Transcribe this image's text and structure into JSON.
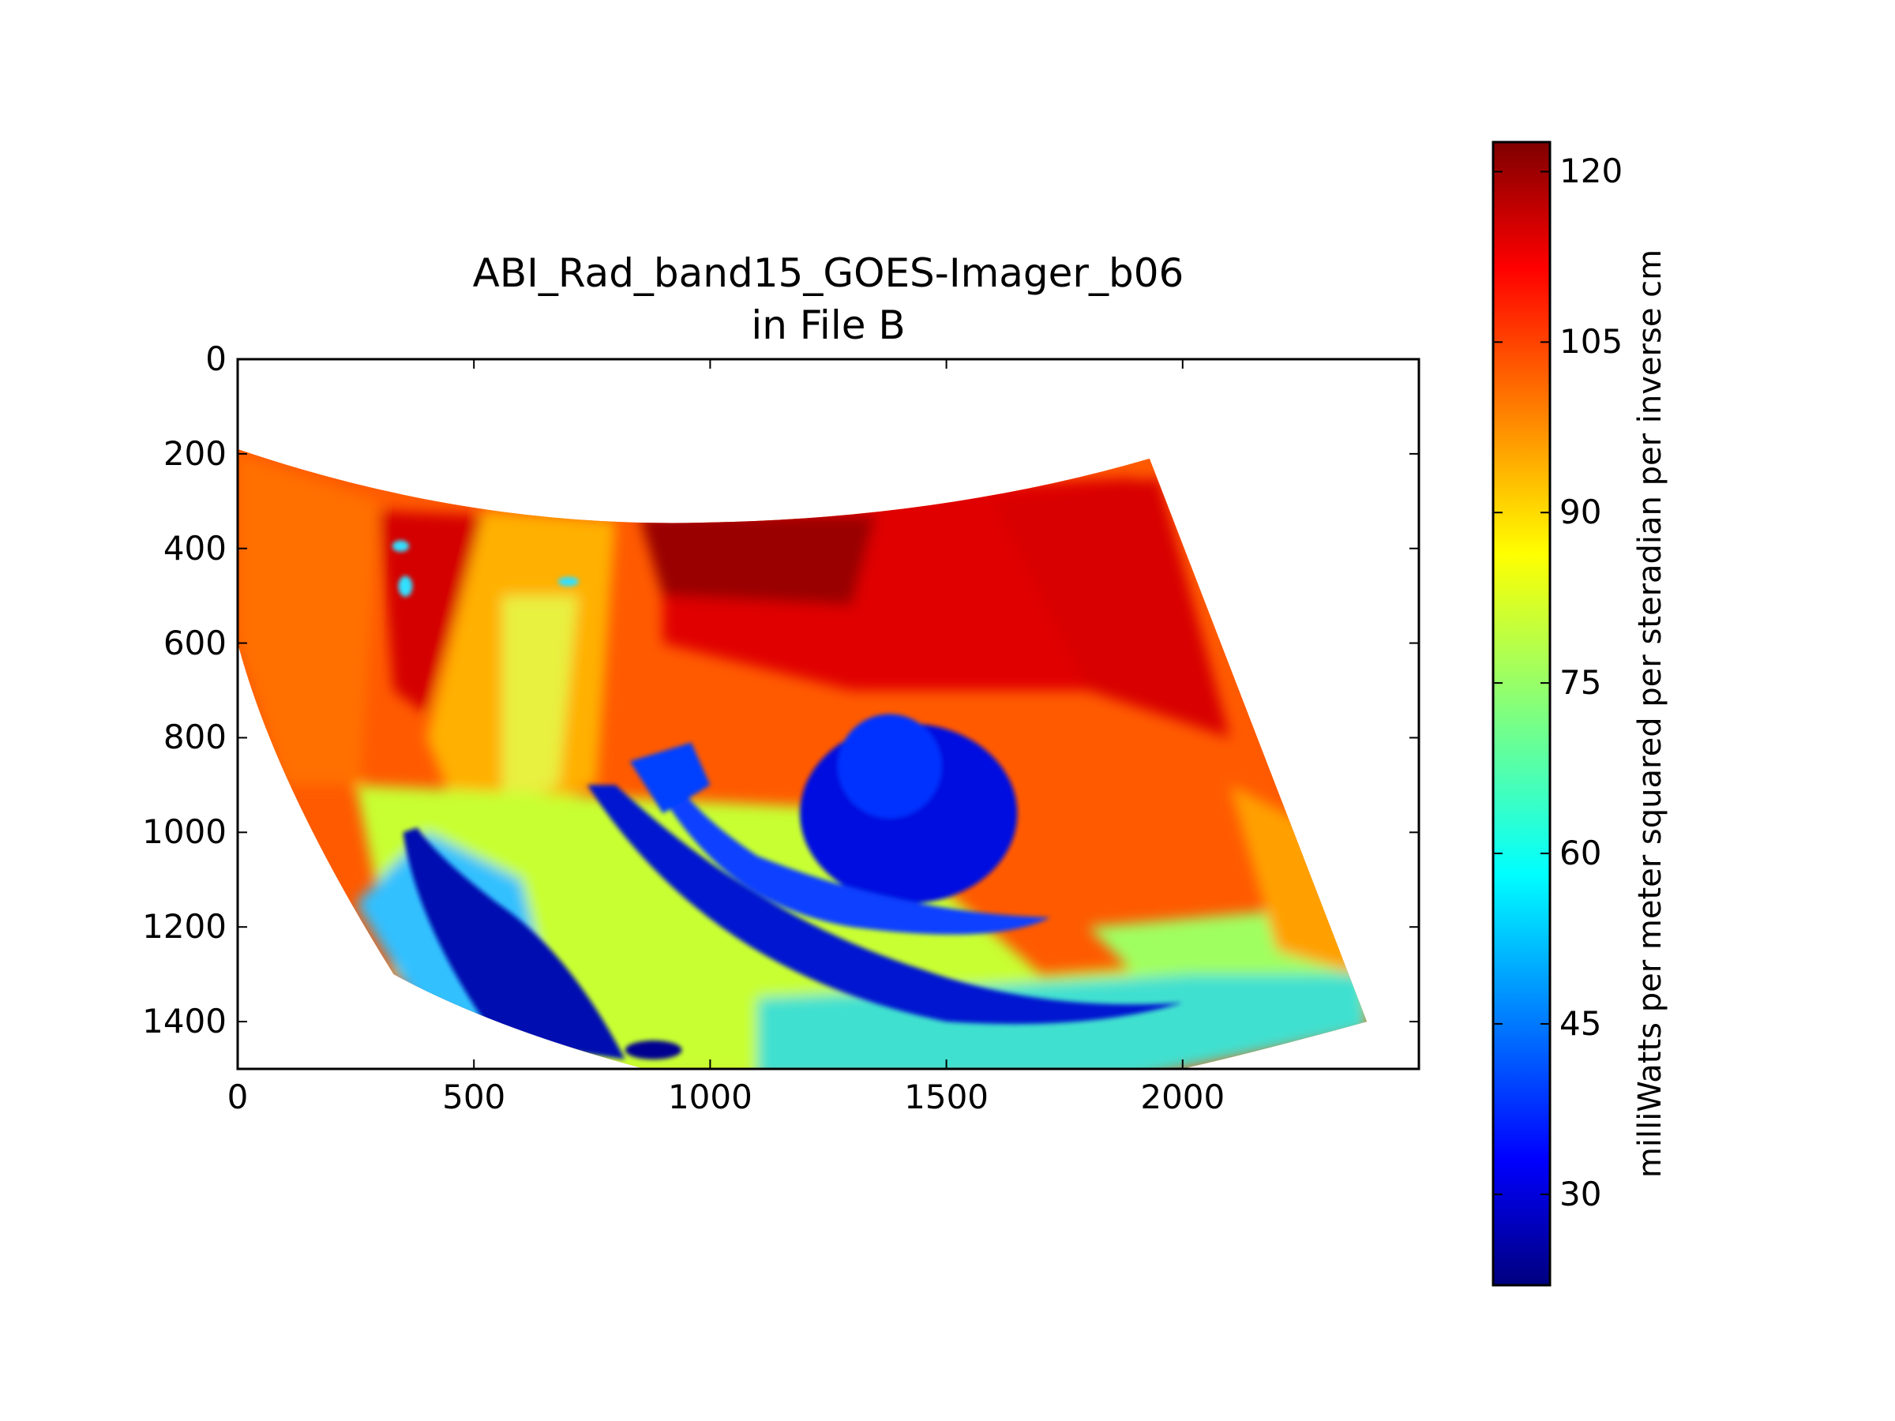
{
  "chart_data": {
    "type": "heatmap",
    "title": "ABI_Rad_band15_GOES-Imager_b06",
    "subtitle": "in File B",
    "xlabel": "",
    "ylabel": "",
    "xlim": [
      0,
      2500
    ],
    "ylim": [
      1500,
      0
    ],
    "xticks": [
      0,
      500,
      1000,
      1500,
      2000
    ],
    "xtick_labels": [
      "0",
      "500",
      "1000",
      "1500",
      "2000"
    ],
    "yticks": [
      0,
      200,
      400,
      600,
      800,
      1000,
      1200,
      1400
    ],
    "ytick_labels": [
      "0",
      "200",
      "400",
      "600",
      "800",
      "1000",
      "1200",
      "1400"
    ],
    "colormap": "jet",
    "colorbar": {
      "label": "milliWatts per meter squared per steradian per inverse cm",
      "range": [
        22,
        122.6
      ],
      "ticks": [
        30,
        45,
        60,
        75,
        90,
        105,
        120
      ],
      "tick_labels": [
        "30",
        "45",
        "60",
        "75",
        "90",
        "105",
        "120"
      ]
    }
  }
}
